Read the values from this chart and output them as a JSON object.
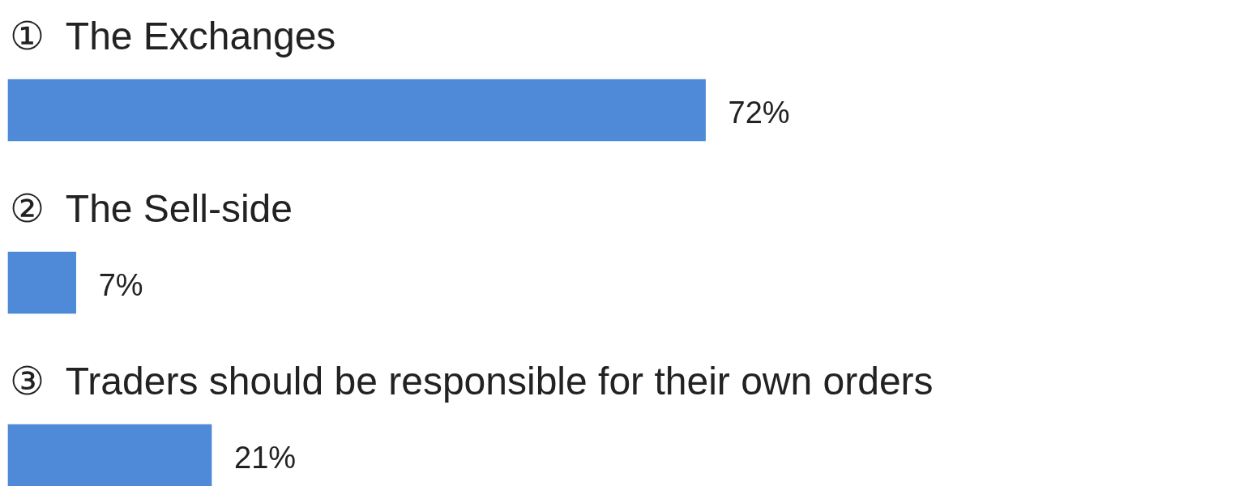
{
  "chart_data": {
    "type": "bar",
    "orientation": "horizontal",
    "categories": [
      "①  The Exchanges",
      "②  The Sell-side",
      "③  Traders should be responsible for their own orders"
    ],
    "values": [
      72,
      7,
      21
    ],
    "value_labels": [
      "72%",
      "7%",
      "21%"
    ],
    "color": "#4f8ad8"
  }
}
